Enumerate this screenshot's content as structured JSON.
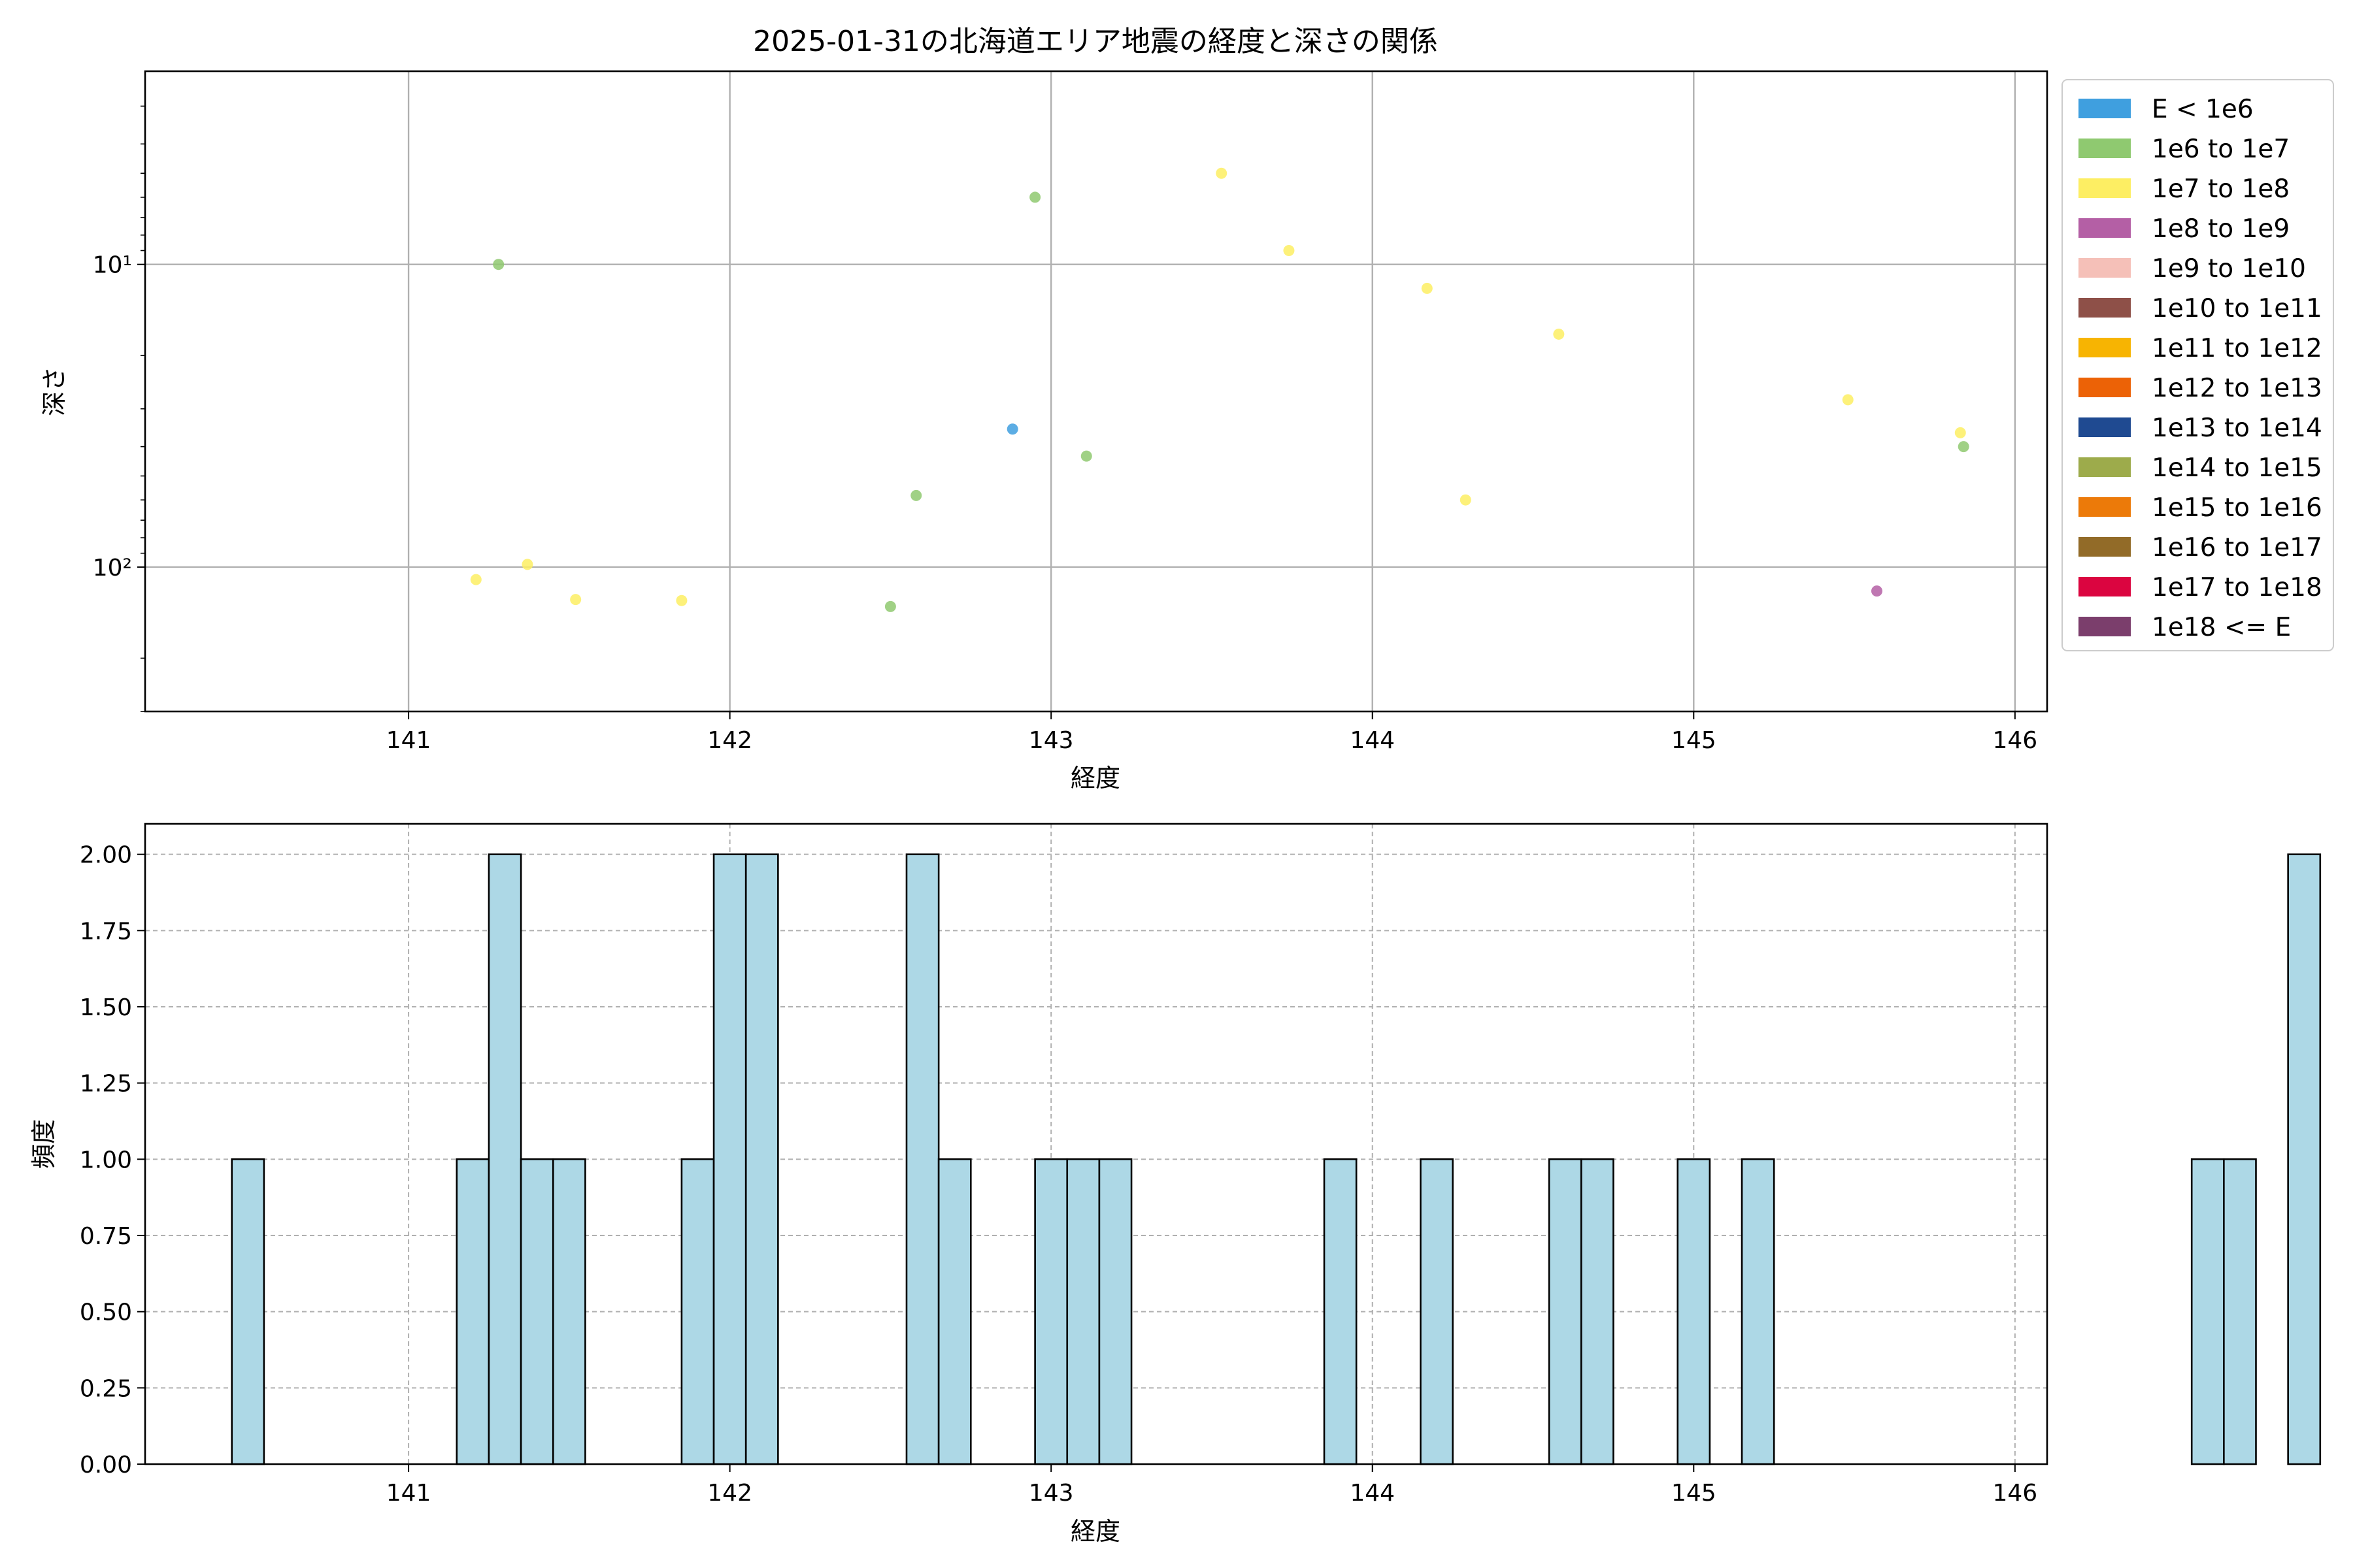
{
  "chart_data": [
    {
      "type": "scatter",
      "title": "2025-01-31の北海道エリア地震の経度と深さの関係",
      "xlabel": "経度",
      "ylabel": "深さ",
      "xlim": [
        140.18,
        146.1
      ],
      "ylim": [
        300,
        2.3
      ],
      "y_scale": "log",
      "y_inverted": true,
      "x_ticks": [
        141,
        142,
        143,
        144,
        145,
        146
      ],
      "y_ticks": [
        {
          "value": 10,
          "label": "10¹"
        },
        {
          "value": 100,
          "label": "10²"
        }
      ],
      "grid": true,
      "legend": {
        "placement": "outside-right",
        "entries": [
          {
            "label": "E < 1e6",
            "color": "#3f9fdf"
          },
          {
            "label": "1e6 to 1e7",
            "color": "#8fc970"
          },
          {
            "label": "1e7 to 1e8",
            "color": "#fdee63"
          },
          {
            "label": "1e8 to 1e9",
            "color": "#b45fa5"
          },
          {
            "label": "1e9 to 1e10",
            "color": "#f5c0b8"
          },
          {
            "label": "1e10 to 1e11",
            "color": "#8e5048"
          },
          {
            "label": "1e11 to 1e12",
            "color": "#f7b402"
          },
          {
            "label": "1e12 to 1e13",
            "color": "#ec6206"
          },
          {
            "label": "1e13 to 1e14",
            "color": "#1f4a91"
          },
          {
            "label": "1e14 to 1e15",
            "color": "#9dab4b"
          },
          {
            "label": "1e15 to 1e16",
            "color": "#ec7a09"
          },
          {
            "label": "1e16 to 1e17",
            "color": "#926b28"
          },
          {
            "label": "1e17 to 1e18",
            "color": "#db0540"
          },
          {
            "label": "1e18 <= E",
            "color": "#7b3e6c"
          }
        ]
      },
      "points": [
        {
          "x": 141.28,
          "y": 10,
          "cls": 1
        },
        {
          "x": 142.95,
          "y": 6,
          "cls": 1
        },
        {
          "x": 143.53,
          "y": 5,
          "cls": 2
        },
        {
          "x": 143.74,
          "y": 9,
          "cls": 2
        },
        {
          "x": 144.17,
          "y": 12,
          "cls": 2
        },
        {
          "x": 144.58,
          "y": 17,
          "cls": 2
        },
        {
          "x": 142.88,
          "y": 35,
          "cls": 0
        },
        {
          "x": 143.11,
          "y": 43,
          "cls": 1
        },
        {
          "x": 142.58,
          "y": 58,
          "cls": 1
        },
        {
          "x": 144.29,
          "y": 60,
          "cls": 2
        },
        {
          "x": 145.48,
          "y": 28,
          "cls": 2
        },
        {
          "x": 145.83,
          "y": 36,
          "cls": 2
        },
        {
          "x": 145.84,
          "y": 40,
          "cls": 1
        },
        {
          "x": 141.21,
          "y": 110,
          "cls": 2
        },
        {
          "x": 141.37,
          "y": 98,
          "cls": 2
        },
        {
          "x": 141.52,
          "y": 128,
          "cls": 2
        },
        {
          "x": 141.85,
          "y": 129,
          "cls": 2
        },
        {
          "x": 142.5,
          "y": 135,
          "cls": 1
        },
        {
          "x": 145.57,
          "y": 120,
          "cls": 3
        }
      ]
    },
    {
      "type": "bar",
      "subtype": "histogram",
      "xlabel": "経度",
      "ylabel": "頻度",
      "xlim": [
        140.18,
        146.1
      ],
      "ylim": [
        0,
        2.1
      ],
      "x_ticks": [
        141,
        142,
        143,
        144,
        145,
        146
      ],
      "y_ticks": [
        "0.00",
        "0.25",
        "0.50",
        "0.75",
        "1.00",
        "1.25",
        "1.50",
        "1.75",
        "2.00"
      ],
      "grid": true,
      "bar_color": "#add8e6",
      "bin_start": 140.45,
      "bin_width": 0.1,
      "counts": [
        1,
        0,
        0,
        0,
        0,
        0,
        0,
        1,
        2,
        1,
        1,
        0,
        0,
        0,
        1,
        2,
        2,
        0,
        0,
        0,
        0,
        2,
        1,
        0,
        0,
        1,
        1,
        1,
        0,
        0,
        0,
        0,
        0,
        0,
        1,
        0,
        0,
        1,
        0,
        0,
        0,
        1,
        1,
        0,
        0,
        1,
        0,
        1,
        0,
        0,
        0,
        0,
        0,
        0,
        0,
        0,
        0,
        0,
        0,
        0,
        0,
        1,
        1,
        0,
        2
      ]
    }
  ]
}
